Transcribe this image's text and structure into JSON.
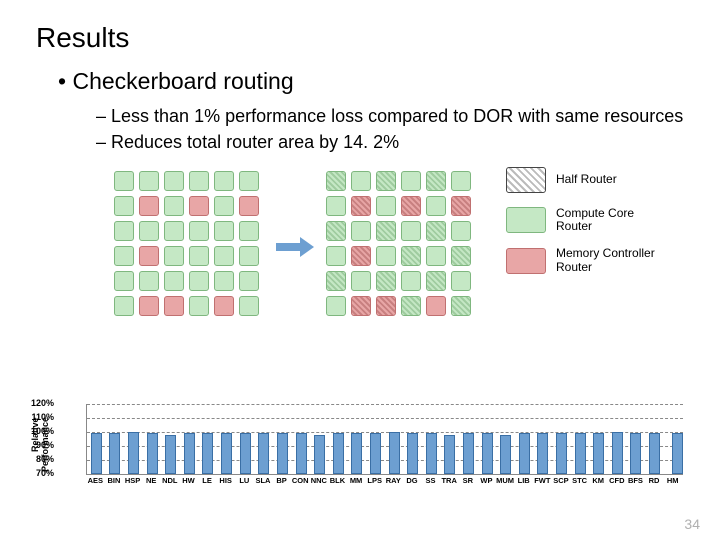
{
  "title": "Results",
  "bullet_main": "Checkerboard routing",
  "bullets_sub": [
    "Less than 1% performance loss compared  to DOR with same resources",
    "Reduces total router area by 14. 2%"
  ],
  "grid_left_pattern": [
    [
      "g",
      "g",
      "g",
      "g",
      "g",
      "g"
    ],
    [
      "g",
      "r",
      "g",
      "r",
      "g",
      "r"
    ],
    [
      "g",
      "g",
      "g",
      "g",
      "g",
      "g"
    ],
    [
      "g",
      "r",
      "g",
      "g",
      "g",
      "g"
    ],
    [
      "g",
      "g",
      "g",
      "g",
      "g",
      "g"
    ],
    [
      "g",
      "r",
      "r",
      "g",
      "r",
      "g"
    ]
  ],
  "grid_right_pattern": [
    [
      "gh",
      "g",
      "gh",
      "g",
      "gh",
      "g"
    ],
    [
      "g",
      "rh",
      "g",
      "rh",
      "g",
      "rh"
    ],
    [
      "gh",
      "g",
      "gh",
      "g",
      "gh",
      "g"
    ],
    [
      "g",
      "rh",
      "g",
      "gh",
      "g",
      "gh"
    ],
    [
      "gh",
      "g",
      "gh",
      "g",
      "gh",
      "g"
    ],
    [
      "g",
      "rh",
      "rh",
      "gh",
      "r",
      "gh"
    ]
  ],
  "legend": [
    {
      "swatch": "half",
      "label": "Half Router"
    },
    {
      "swatch": "compute",
      "label": "Compute Core\nRouter"
    },
    {
      "swatch": "memory",
      "label": "Memory Controller\nRouter"
    }
  ],
  "chart": {
    "type": "bar",
    "ylabel_line1": "Relative",
    "ylabel_line2": "Performance",
    "ylim": [
      70,
      120
    ],
    "yticks": [
      120,
      110,
      100,
      90,
      80,
      70
    ],
    "bar_color": "#6d9fd1",
    "bar_border": "#3a6fa5",
    "grid_color": "#888888",
    "categories": [
      "AES",
      "BIN",
      "HSP",
      "NE",
      "NDL",
      "HW",
      "LE",
      "HIS",
      "LU",
      "SLA",
      "BP",
      "CON",
      "NNC",
      "BLK",
      "MM",
      "LPS",
      "RAY",
      "DG",
      "SS",
      "TRA",
      "SR",
      "WP",
      "MUM",
      "LIB",
      "FWT",
      "SCP",
      "STC",
      "KM",
      "CFD",
      "BFS",
      "RD",
      "HM"
    ],
    "values": [
      99,
      99,
      100,
      99,
      98,
      99,
      99,
      99,
      99,
      99,
      99,
      99,
      98,
      99,
      99,
      99,
      100,
      99,
      99,
      98,
      99,
      99,
      98,
      99,
      99,
      99,
      99,
      99,
      100,
      99,
      99,
      99
    ],
    "hm_gap_after_index": 30
  },
  "page_number": "34",
  "colors": {
    "green_fill": "#c5e8c5",
    "green_border": "#7fb77f",
    "red_fill": "#e8a6a6",
    "red_border": "#c07070",
    "arrow": "#6d9fd1"
  }
}
